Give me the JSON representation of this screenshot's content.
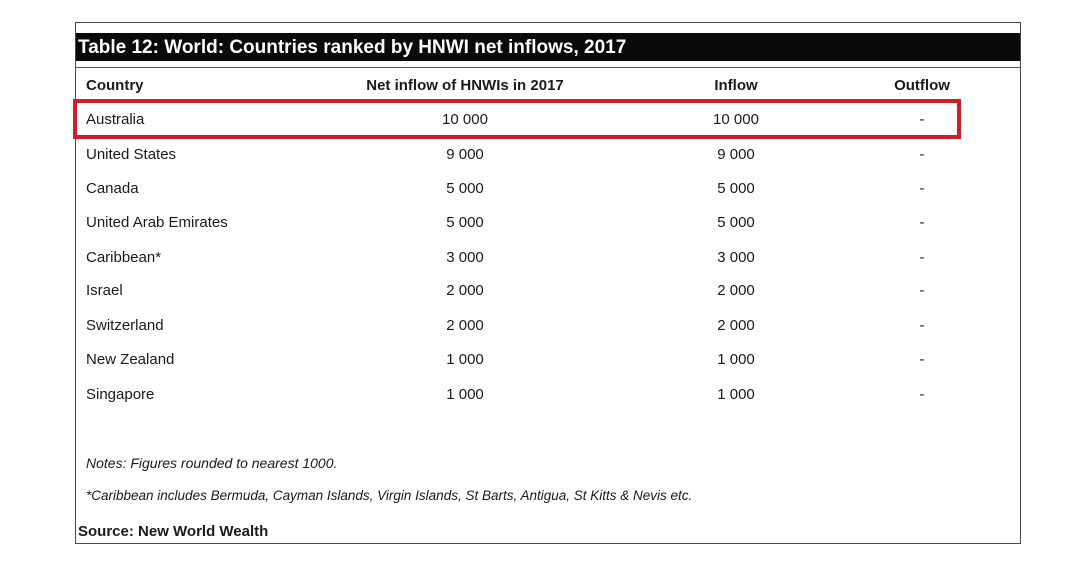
{
  "title": "Table 12: World: Countries ranked by HNWI net inflows, 2017",
  "columns": {
    "country": "Country",
    "net": "Net inflow of HNWIs in 2017",
    "inflow": "Inflow",
    "outflow": "Outflow"
  },
  "rows": [
    {
      "country": "Australia",
      "net": "10 000",
      "inflow": "10 000",
      "outflow": "-"
    },
    {
      "country": "United States",
      "net": "9 000",
      "inflow": "9 000",
      "outflow": "-"
    },
    {
      "country": "Canada",
      "net": "5 000",
      "inflow": "5 000",
      "outflow": "-"
    },
    {
      "country": "United Arab Emirates",
      "net": "5 000",
      "inflow": "5 000",
      "outflow": "-"
    },
    {
      "country": "Caribbean*",
      "net": "3 000",
      "inflow": "3 000",
      "outflow": "-"
    },
    {
      "country": "Israel",
      "net": "2 000",
      "inflow": "2 000",
      "outflow": "-"
    },
    {
      "country": "Switzerland",
      "net": "2 000",
      "inflow": "2 000",
      "outflow": "-"
    },
    {
      "country": "New Zealand",
      "net": "1 000",
      "inflow": "1 000",
      "outflow": "-"
    },
    {
      "country": "Singapore",
      "net": "1 000",
      "inflow": "1 000",
      "outflow": "-"
    }
  ],
  "notes": [
    "Notes: Figures rounded to nearest 1000.",
    "*Caribbean includes Bermuda, Cayman Islands, Virgin Islands, St Barts, Antigua, St Kitts & Nevis etc."
  ],
  "source": "Source: New World Wealth",
  "highlight_color": "#cc1f2a"
}
